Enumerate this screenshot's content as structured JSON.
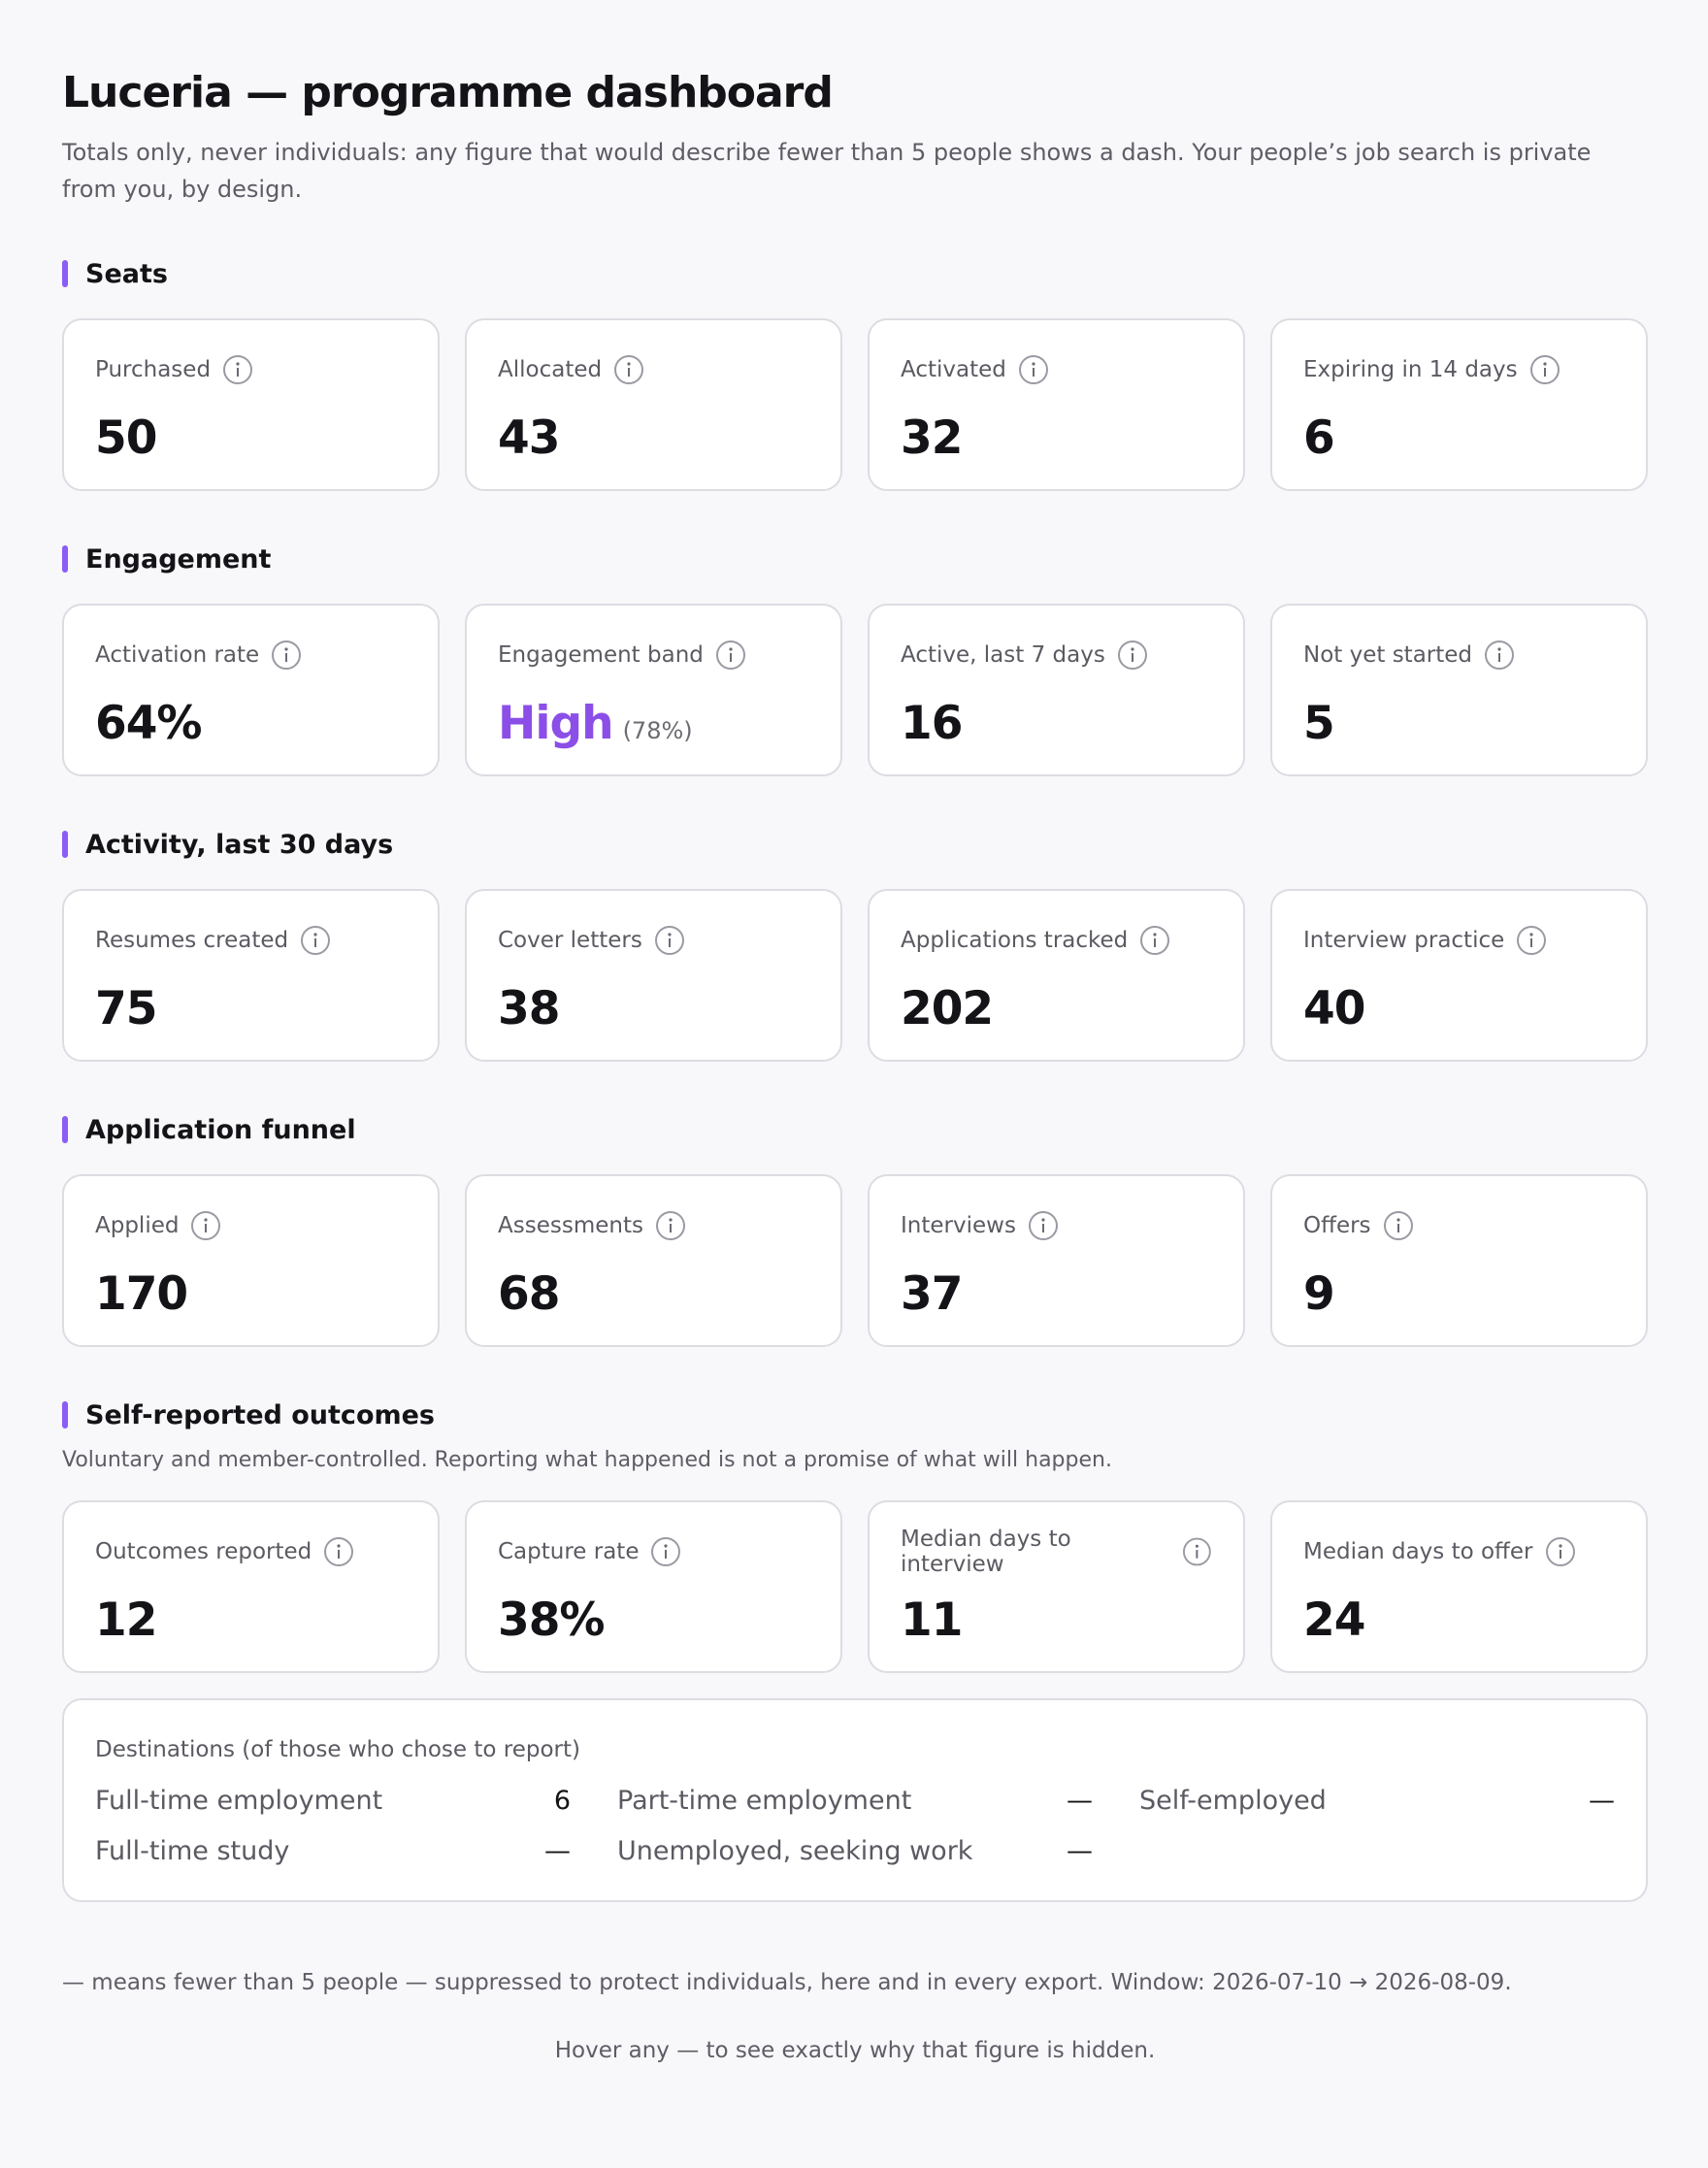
{
  "header": {
    "title": "Luceria — programme dashboard",
    "subtitle": "Totals only, never individuals: any figure that would describe fewer than 5 people shows a dash. Your people’s job search is private from you, by design."
  },
  "sections": [
    {
      "title": "Seats",
      "cards": [
        {
          "label": "Purchased",
          "value": "50"
        },
        {
          "label": "Allocated",
          "value": "43"
        },
        {
          "label": "Activated",
          "value": "32"
        },
        {
          "label": "Expiring in 14 days",
          "value": "6"
        }
      ]
    },
    {
      "title": "Engagement",
      "cards": [
        {
          "label": "Activation rate",
          "value": "64%"
        },
        {
          "label": "Engagement band",
          "value": "High",
          "detail": "(78%)"
        },
        {
          "label": "Active, last 7 days",
          "value": "16"
        },
        {
          "label": "Not yet started",
          "value": "5"
        }
      ]
    },
    {
      "title": "Activity, last 30 days",
      "cards": [
        {
          "label": "Resumes created",
          "value": "75"
        },
        {
          "label": "Cover letters",
          "value": "38"
        },
        {
          "label": "Applications tracked",
          "value": "202"
        },
        {
          "label": "Interview practice",
          "value": "40"
        }
      ]
    },
    {
      "title": "Application funnel",
      "cards": [
        {
          "label": "Applied",
          "value": "170"
        },
        {
          "label": "Assessments",
          "value": "68"
        },
        {
          "label": "Interviews",
          "value": "37"
        },
        {
          "label": "Offers",
          "value": "9"
        }
      ]
    },
    {
      "title": "Self-reported outcomes",
      "note": "Voluntary and member-controlled. Reporting what happened is not a promise of what will happen.",
      "cards": [
        {
          "label": "Outcomes reported",
          "value": "12"
        },
        {
          "label": "Capture rate",
          "value": "38%"
        },
        {
          "label": "Median days to interview",
          "value": "11"
        },
        {
          "label": "Median days to offer",
          "value": "24"
        }
      ]
    }
  ],
  "destinations": {
    "title": "Destinations (of those who chose to report)",
    "items": [
      {
        "label": "Full-time employment",
        "value": "6"
      },
      {
        "label": "Part-time employment",
        "value": "—"
      },
      {
        "label": "Self-employed",
        "value": "—"
      },
      {
        "label": "Full-time study",
        "value": "—"
      },
      {
        "label": "Unemployed, seeking work",
        "value": "—"
      }
    ]
  },
  "footer": {
    "legend": "— means fewer than 5 people — suppressed to protect individuals, here and in every export. Window: 2026-07-10 → 2026-08-09.",
    "hover": "Hover any — to see exactly why that figure is hidden."
  }
}
